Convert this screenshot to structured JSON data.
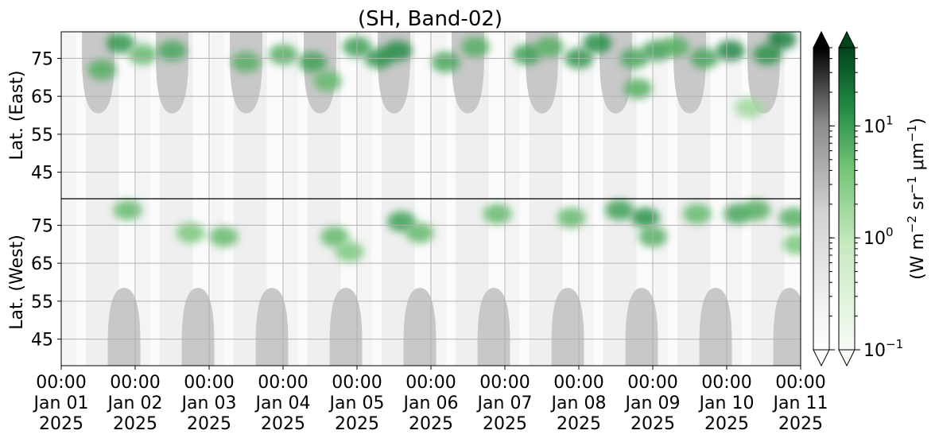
{
  "chart_data": {
    "type": "heatmap",
    "title": "(SH, Band-02)",
    "xlabel": "",
    "ylabel_top": "Lat. (East)",
    "ylabel_bottom": "Lat. (West)",
    "x_ticks": [
      {
        "time": "00:00",
        "date": "Jan 01",
        "year": "2025"
      },
      {
        "time": "00:00",
        "date": "Jan 02",
        "year": "2025"
      },
      {
        "time": "00:00",
        "date": "Jan 03",
        "year": "2025"
      },
      {
        "time": "00:00",
        "date": "Jan 04",
        "year": "2025"
      },
      {
        "time": "00:00",
        "date": "Jan 05",
        "year": "2025"
      },
      {
        "time": "00:00",
        "date": "Jan 06",
        "year": "2025"
      },
      {
        "time": "00:00",
        "date": "Jan 07",
        "year": "2025"
      },
      {
        "time": "00:00",
        "date": "Jan 08",
        "year": "2025"
      },
      {
        "time": "00:00",
        "date": "Jan 09",
        "year": "2025"
      },
      {
        "time": "00:00",
        "date": "Jan 10",
        "year": "2025"
      },
      {
        "time": "00:00",
        "date": "Jan 11",
        "year": "2025"
      }
    ],
    "x_range": [
      "2025-01-01 00:00",
      "2025-01-11 00:00"
    ],
    "y_ticks_east": [
      "45",
      "55",
      "65",
      "75"
    ],
    "y_ticks_west": [
      "75",
      "65",
      "55",
      "45"
    ],
    "y_tick_values_east": [
      45,
      55,
      65,
      75
    ],
    "y_tick_values_west": [
      75,
      65,
      55,
      45
    ],
    "y_range_east": [
      38,
      82
    ],
    "y_range_west": [
      82,
      38
    ],
    "grid": true,
    "colorbars": [
      {
        "name": "gray",
        "colors": [
          "#ffffff",
          "#bdbdbd",
          "#6e6e6e",
          "#000000"
        ],
        "extend": "both"
      },
      {
        "name": "greens",
        "colors": [
          "#f7fcf5",
          "#a1d99b",
          "#41ab5d",
          "#00441b"
        ],
        "extend": "both"
      }
    ],
    "colorbar_ticks": [
      {
        "value": 10,
        "base": "10",
        "exp": "1"
      },
      {
        "value": 1,
        "base": "10",
        "exp": "0"
      },
      {
        "value": 0.1,
        "base": "10",
        "exp": "−1"
      }
    ],
    "colorbar_range": [
      0.1,
      50
    ],
    "colorbar_label": {
      "p1": "(W m",
      "s1": "−2",
      "p2": " sr",
      "s2": "−1",
      "p3": " μm",
      "s3": "−1",
      "p4": ")"
    },
    "mask_days_east": [
      0.5,
      1.5,
      2.5,
      3.5,
      4.5,
      5.5,
      6.5,
      7.5,
      8.5,
      9.5
    ],
    "mask_days_west": [
      0.85,
      1.85,
      2.85,
      3.85,
      4.85,
      5.85,
      6.85,
      7.85,
      8.85,
      9.85
    ],
    "mask_limit_east_lat": 60.5,
    "mask_limit_west_lat": 58.5,
    "mask_color": "#c8c8c8",
    "emission_blobs": [
      {
        "day": 0.55,
        "hemi": "east",
        "lat": 72,
        "value": 4
      },
      {
        "day": 0.8,
        "hemi": "east",
        "lat": 79,
        "value": 8
      },
      {
        "day": 0.9,
        "hemi": "west",
        "lat": 79,
        "value": 3
      },
      {
        "day": 1.1,
        "hemi": "east",
        "lat": 76,
        "value": 3
      },
      {
        "day": 1.5,
        "hemi": "east",
        "lat": 77,
        "value": 5
      },
      {
        "day": 1.75,
        "hemi": "west",
        "lat": 73,
        "value": 2
      },
      {
        "day": 2.2,
        "hemi": "west",
        "lat": 72,
        "value": 3
      },
      {
        "day": 2.5,
        "hemi": "east",
        "lat": 74,
        "value": 4
      },
      {
        "day": 3.0,
        "hemi": "east",
        "lat": 76,
        "value": 4
      },
      {
        "day": 3.4,
        "hemi": "east",
        "lat": 74,
        "value": 6
      },
      {
        "day": 3.6,
        "hemi": "east",
        "lat": 69,
        "value": 3
      },
      {
        "day": 3.7,
        "hemi": "west",
        "lat": 72,
        "value": 3
      },
      {
        "day": 3.9,
        "hemi": "west",
        "lat": 68,
        "value": 2
      },
      {
        "day": 4.0,
        "hemi": "east",
        "lat": 78,
        "value": 6
      },
      {
        "day": 4.3,
        "hemi": "east",
        "lat": 75,
        "value": 8
      },
      {
        "day": 4.55,
        "hemi": "east",
        "lat": 77,
        "value": 10
      },
      {
        "day": 4.6,
        "hemi": "west",
        "lat": 76,
        "value": 6
      },
      {
        "day": 4.85,
        "hemi": "west",
        "lat": 73,
        "value": 3
      },
      {
        "day": 5.2,
        "hemi": "east",
        "lat": 74,
        "value": 5
      },
      {
        "day": 5.6,
        "hemi": "east",
        "lat": 78,
        "value": 4
      },
      {
        "day": 5.9,
        "hemi": "west",
        "lat": 78,
        "value": 3
      },
      {
        "day": 6.3,
        "hemi": "east",
        "lat": 76,
        "value": 6
      },
      {
        "day": 6.6,
        "hemi": "east",
        "lat": 78,
        "value": 4
      },
      {
        "day": 6.9,
        "hemi": "west",
        "lat": 77,
        "value": 3
      },
      {
        "day": 7.0,
        "hemi": "east",
        "lat": 75,
        "value": 8
      },
      {
        "day": 7.25,
        "hemi": "east",
        "lat": 79,
        "value": 10
      },
      {
        "day": 7.55,
        "hemi": "west",
        "lat": 79,
        "value": 6
      },
      {
        "day": 7.75,
        "hemi": "east",
        "lat": 75,
        "value": 5
      },
      {
        "day": 7.8,
        "hemi": "east",
        "lat": 67,
        "value": 4
      },
      {
        "day": 7.9,
        "hemi": "west",
        "lat": 77,
        "value": 9
      },
      {
        "day": 8.0,
        "hemi": "west",
        "lat": 72,
        "value": 4
      },
      {
        "day": 8.05,
        "hemi": "east",
        "lat": 77,
        "value": 6
      },
      {
        "day": 8.3,
        "hemi": "east",
        "lat": 78,
        "value": 4
      },
      {
        "day": 8.6,
        "hemi": "west",
        "lat": 78,
        "value": 3
      },
      {
        "day": 8.7,
        "hemi": "east",
        "lat": 75,
        "value": 5
      },
      {
        "day": 9.05,
        "hemi": "east",
        "lat": 77,
        "value": 12
      },
      {
        "day": 9.15,
        "hemi": "west",
        "lat": 78,
        "value": 5
      },
      {
        "day": 9.4,
        "hemi": "west",
        "lat": 79,
        "value": 4
      },
      {
        "day": 9.55,
        "hemi": "east",
        "lat": 76,
        "value": 9
      },
      {
        "day": 9.75,
        "hemi": "east",
        "lat": 80,
        "value": 14
      },
      {
        "day": 9.9,
        "hemi": "west",
        "lat": 77,
        "value": 4
      },
      {
        "day": 9.95,
        "hemi": "west",
        "lat": 70,
        "value": 2
      },
      {
        "day": 9.3,
        "hemi": "east",
        "lat": 62,
        "value": 1
      }
    ]
  }
}
